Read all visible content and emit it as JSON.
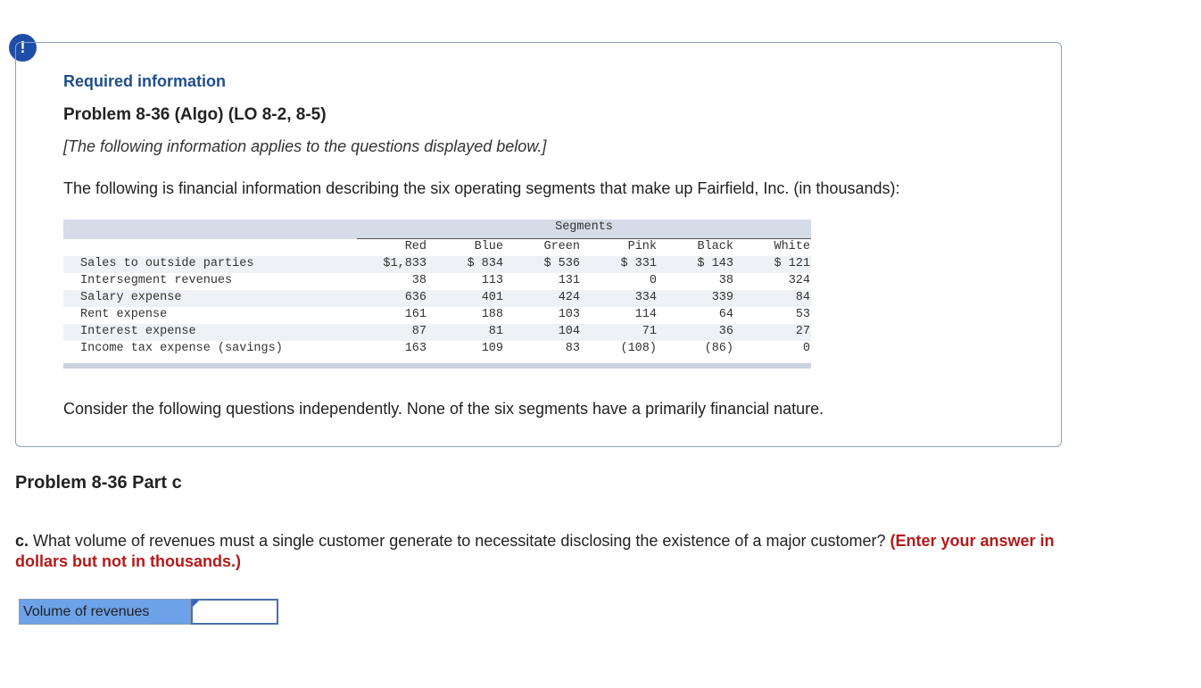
{
  "alert_icon": "!",
  "info": {
    "required_label": "Required information",
    "problem_title": "Problem 8-36 (Algo) (LO 8-2, 8-5)",
    "note": "[The following information applies to the questions displayed below.]",
    "intro": "The following is financial information describing the six operating segments that make up Fairfield, Inc. (in thousands):",
    "consider": "Consider the following questions independently. None of the six segments have a primarily financial nature."
  },
  "table": {
    "group_header": "Segments",
    "columns": [
      "Red",
      "Blue",
      "Green",
      "Pink",
      "Black",
      "White"
    ],
    "rows": [
      {
        "label": "Sales to outside parties",
        "values": [
          "$1,833",
          "$ 834",
          "$ 536",
          "$ 331",
          "$ 143",
          "$ 121"
        ]
      },
      {
        "label": "Intersegment revenues",
        "values": [
          "38",
          "113",
          "131",
          "0",
          "38",
          "324"
        ]
      },
      {
        "label": "Salary expense",
        "values": [
          "636",
          "401",
          "424",
          "334",
          "339",
          "84"
        ]
      },
      {
        "label": "Rent expense",
        "values": [
          "161",
          "188",
          "103",
          "114",
          "64",
          "53"
        ]
      },
      {
        "label": "Interest expense",
        "values": [
          "87",
          "81",
          "104",
          "71",
          "36",
          "27"
        ]
      },
      {
        "label": "Income tax expense (savings)",
        "values": [
          "163",
          "109",
          "83",
          "(108)",
          "(86)",
          "0"
        ]
      }
    ]
  },
  "part": {
    "title": "Problem 8-36 Part c",
    "question_lead": "c.",
    "question_text": " What volume of revenues must a single customer generate to necessitate disclosing the existence of a major customer? ",
    "instruction": "(Enter your answer in dollars but not in thousands.)"
  },
  "answer": {
    "label": "Volume of revenues",
    "value": ""
  }
}
